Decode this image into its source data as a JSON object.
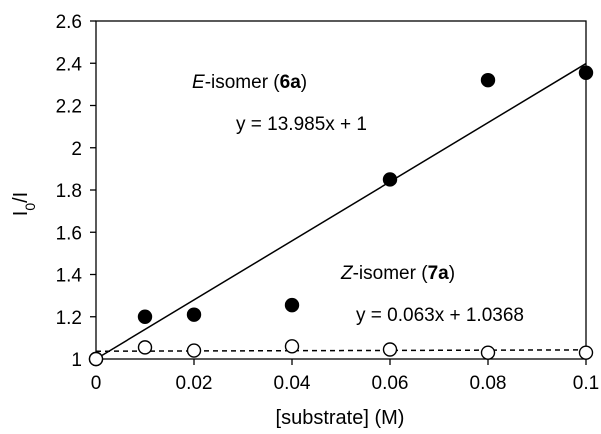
{
  "chart_data": {
    "type": "scatter",
    "xlabel": "[substrate] (M)",
    "ylabel": {
      "main": "I",
      "sub": "0",
      "rest": "/I"
    },
    "xlim": [
      0,
      0.1
    ],
    "ylim": [
      1,
      2.6
    ],
    "x_ticks": [
      "0",
      "0.02",
      "0.04",
      "0.06",
      "0.08",
      "0.1"
    ],
    "y_ticks": [
      "1",
      "1.2",
      "1.4",
      "1.6",
      "1.8",
      "2",
      "2.2",
      "2.4",
      "2.6"
    ],
    "grid": false,
    "series": [
      {
        "marker": "filled-circle",
        "color": "#000000",
        "x": [
          0,
          0.01,
          0.02,
          0.04,
          0.06,
          0.08,
          0.1
        ],
        "y": [
          1.0,
          1.2,
          1.21,
          1.255,
          1.85,
          2.32,
          2.355
        ],
        "trendline": {
          "slope": 13.985,
          "intercept": 1,
          "style": "solid"
        }
      },
      {
        "marker": "open-circle",
        "color": "#000000",
        "x": [
          0,
          0.01,
          0.02,
          0.04,
          0.06,
          0.08,
          0.1
        ],
        "y": [
          1.0,
          1.055,
          1.04,
          1.06,
          1.045,
          1.03,
          1.03
        ],
        "trendline": {
          "slope": 0.063,
          "intercept": 1.0368,
          "style": "dashed"
        }
      }
    ],
    "annotations": {
      "e_label": {
        "italic": "E",
        "mid": "-isomer (",
        "bold": "6a",
        "end": ")"
      },
      "e_equation": "y = 13.985x + 1",
      "z_label": {
        "italic": "Z",
        "mid": "-isomer (",
        "bold": "7a",
        "end": ")"
      },
      "z_equation": "y = 0.063x + 1.0368"
    }
  }
}
